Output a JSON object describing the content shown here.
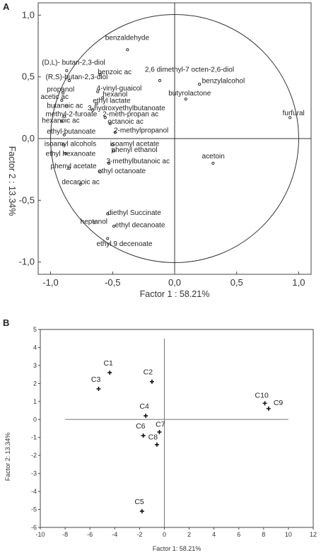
{
  "chart_data": [
    {
      "panel": "A",
      "type": "scatter",
      "xlabel": "Factor 1 : 58.21%",
      "ylabel": "Factor 2 : 13.34%",
      "xlim": [
        -1.1,
        1.1
      ],
      "ylim": [
        -1.1,
        1.1
      ],
      "xticks": [
        "-1,0",
        "-0,5",
        "0,0",
        "0,5",
        "1,0"
      ],
      "xtick_values": [
        -1.0,
        -0.5,
        0.0,
        0.5,
        1.0
      ],
      "yticks": [
        "1,0",
        "0,5",
        "0,0",
        "-0,5",
        "-1,0"
      ],
      "ytick_values": [
        1.0,
        0.5,
        0.0,
        -0.5,
        -1.0
      ],
      "unit_circle": true,
      "points": [
        {
          "label": "benzaldehyde",
          "x": -0.38,
          "y": 0.72,
          "lx": -0.56,
          "ly": 0.8
        },
        {
          "label": "(D,L)- butan-2,3-diol",
          "x": -0.87,
          "y": 0.55,
          "lx": -1.07,
          "ly": 0.6
        },
        {
          "label": "(R,S)-butan-2,3-diol",
          "x": -0.85,
          "y": 0.47,
          "lx": -1.04,
          "ly": 0.48
        },
        {
          "label": "benzoic ac",
          "x": -0.6,
          "y": 0.52,
          "lx": -0.62,
          "ly": 0.52
        },
        {
          "label": "2,6 dimethyl-7 octen-2,6-diol",
          "x": -0.12,
          "y": 0.47,
          "lx": -0.24,
          "ly": 0.54
        },
        {
          "label": "benzylalcohol",
          "x": 0.2,
          "y": 0.44,
          "lx": 0.22,
          "ly": 0.45
        },
        {
          "label": "propanol",
          "x": -0.9,
          "y": 0.37,
          "lx": -1.03,
          "ly": 0.38
        },
        {
          "label": "4-vinyl-guaicol",
          "x": -0.62,
          "y": 0.38,
          "lx": -0.63,
          "ly": 0.39
        },
        {
          "label": "hexanol",
          "x": -0.58,
          "y": 0.33,
          "lx": -0.58,
          "ly": 0.34
        },
        {
          "label": "butyrolactone",
          "x": 0.09,
          "y": 0.32,
          "lx": -0.05,
          "ly": 0.35
        },
        {
          "label": "acetic ac",
          "x": -0.91,
          "y": 0.31,
          "lx": -1.08,
          "ly": 0.32
        },
        {
          "label": "ethyl lactate",
          "x": -0.63,
          "y": 0.28,
          "lx": -0.66,
          "ly": 0.29
        },
        {
          "label": "butanoic ac",
          "x": -0.87,
          "y": 0.26,
          "lx": -1.03,
          "ly": 0.25
        },
        {
          "label": "3-hydroxyethylbutanoate",
          "x": -0.66,
          "y": 0.23,
          "lx": -0.7,
          "ly": 0.23
        },
        {
          "label": "methyl-2-furoate",
          "x": -0.89,
          "y": 0.18,
          "lx": -1.04,
          "ly": 0.18
        },
        {
          "label": "2-meth-propan ac",
          "x": -0.56,
          "y": 0.17,
          "lx": -0.58,
          "ly": 0.18
        },
        {
          "label": "hexanoic ac",
          "x": -0.91,
          "y": 0.14,
          "lx": -1.07,
          "ly": 0.13
        },
        {
          "label": "octanoic ac",
          "x": -0.52,
          "y": 0.12,
          "lx": -0.54,
          "ly": 0.12
        },
        {
          "label": "furfural",
          "x": 0.93,
          "y": 0.17,
          "lx": 0.87,
          "ly": 0.19
        },
        {
          "label": "ethyl-butanoate",
          "x": -0.89,
          "y": 0.03,
          "lx": -1.03,
          "ly": 0.04
        },
        {
          "label": "2-methylpropanol",
          "x": -0.48,
          "y": 0.05,
          "lx": -0.49,
          "ly": 0.05
        },
        {
          "label": "isoamyl alcohols",
          "x": -0.9,
          "y": -0.05,
          "lx": -1.05,
          "ly": -0.06
        },
        {
          "label": "isoamyl acetate",
          "x": -0.5,
          "y": -0.05,
          "lx": -0.52,
          "ly": -0.06
        },
        {
          "label": "phenyl ethanol",
          "x": -0.49,
          "y": -0.1,
          "lx": -0.51,
          "ly": -0.11
        },
        {
          "label": "ethyl hexanoate",
          "x": -0.88,
          "y": -0.12,
          "lx": -1.04,
          "ly": -0.14
        },
        {
          "label": "acetoin",
          "x": 0.31,
          "y": -0.2,
          "lx": 0.22,
          "ly": -0.16
        },
        {
          "label": "3-methylbutanoic ac",
          "x": -0.53,
          "y": -0.2,
          "lx": -0.55,
          "ly": -0.2
        },
        {
          "label": "phenyl acetate",
          "x": -0.85,
          "y": -0.24,
          "lx": -1.0,
          "ly": -0.24
        },
        {
          "label": "ethyl octanoate",
          "x": -0.6,
          "y": -0.27,
          "lx": -0.62,
          "ly": -0.28
        },
        {
          "label": "decanoic ac",
          "x": -0.76,
          "y": -0.37,
          "lx": -0.91,
          "ly": -0.37
        },
        {
          "label": "diethyl Succinate",
          "x": -0.54,
          "y": -0.61,
          "lx": -0.54,
          "ly": -0.62
        },
        {
          "label": "heptanol",
          "x": -0.65,
          "y": -0.68,
          "lx": -0.76,
          "ly": -0.69
        },
        {
          "label": "ethyl decanoate",
          "x": -0.49,
          "y": -0.71,
          "lx": -0.48,
          "ly": -0.72
        },
        {
          "label": "ethyl 9 decenoate",
          "x": -0.54,
          "y": -0.81,
          "lx": -0.63,
          "ly": -0.87
        }
      ]
    },
    {
      "panel": "B",
      "type": "scatter",
      "xlabel": "Factor 1: 58.21%",
      "ylabel": "Factor 2: 13.34%",
      "xlim": [
        -10,
        12
      ],
      "ylim": [
        -6,
        5
      ],
      "xticks": [
        "-10",
        "-8",
        "-6",
        "-4",
        "-2",
        "0",
        "2",
        "4",
        "6",
        "8",
        "10",
        "12"
      ],
      "xtick_values": [
        -10,
        -8,
        -6,
        -4,
        -2,
        0,
        2,
        4,
        6,
        8,
        10,
        12
      ],
      "yticks": [
        "5",
        "4",
        "3",
        "2",
        "1",
        "0",
        "-1",
        "-2",
        "-3",
        "-4",
        "-5",
        "-6"
      ],
      "ytick_values": [
        5,
        4,
        3,
        2,
        1,
        0,
        -1,
        -2,
        -3,
        -4,
        -5,
        -6
      ],
      "axis_lines": {
        "x": [
          -8,
          10
        ],
        "y": [
          -6,
          4.5
        ]
      },
      "points": [
        {
          "label": "C1",
          "x": -4.4,
          "y": 2.6,
          "lx": -4.9,
          "ly": 3.0
        },
        {
          "label": "C3",
          "x": -5.3,
          "y": 1.7,
          "lx": -5.9,
          "ly": 2.1
        },
        {
          "label": "C2",
          "x": -1.0,
          "y": 2.1,
          "lx": -1.7,
          "ly": 2.5
        },
        {
          "label": "C4",
          "x": -1.5,
          "y": 0.2,
          "lx": -2.0,
          "ly": 0.6
        },
        {
          "label": "C6",
          "x": -1.7,
          "y": -0.9,
          "lx": -2.3,
          "ly": -0.5
        },
        {
          "label": "C7",
          "x": -0.4,
          "y": -0.7,
          "lx": -0.7,
          "ly": -0.4
        },
        {
          "label": "C8",
          "x": -0.6,
          "y": -1.4,
          "lx": -1.3,
          "ly": -1.1
        },
        {
          "label": "C5",
          "x": -1.8,
          "y": -5.1,
          "lx": -2.4,
          "ly": -4.7
        },
        {
          "label": "C10",
          "x": 8.1,
          "y": 0.9,
          "lx": 7.3,
          "ly": 1.2
        },
        {
          "label": "C9",
          "x": 8.4,
          "y": 0.6,
          "lx": 8.8,
          "ly": 0.8
        }
      ]
    }
  ],
  "panel_labels": {
    "a": "A",
    "b": "B"
  }
}
